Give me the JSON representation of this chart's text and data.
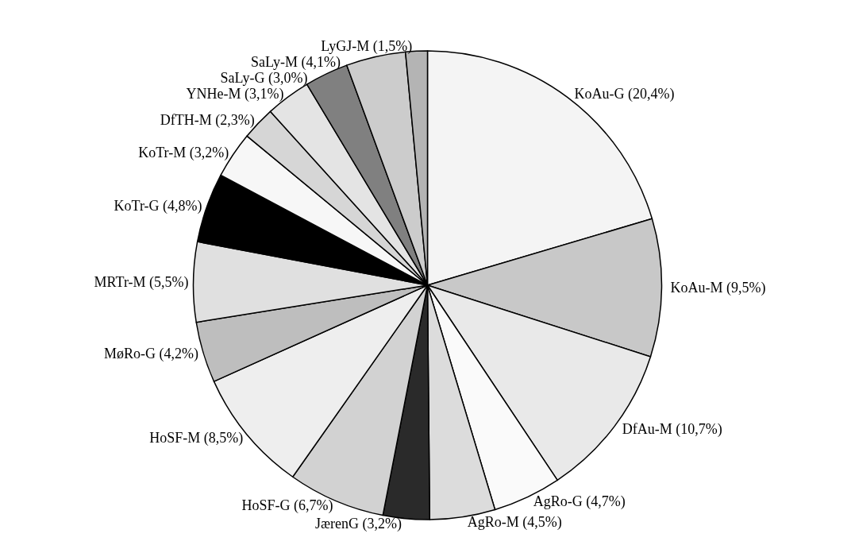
{
  "chart_data": {
    "type": "pie",
    "categories": [
      "KoAu-G",
      "KoAu-M",
      "DfAu-M",
      "AgRo-G",
      "AgRo-M",
      "JærenG",
      "HoSF-G",
      "HoSF-M",
      "MøRo-G",
      "MRTr-M",
      "KoTr-G",
      "KoTr-M",
      "DfTH-M",
      "YNHe-M",
      "SaLy-G",
      "SaLy-M",
      "LyGJ-M"
    ],
    "values": [
      20.4,
      9.5,
      10.7,
      4.7,
      4.5,
      3.2,
      6.7,
      8.5,
      4.2,
      5.5,
      4.8,
      3.2,
      2.3,
      3.1,
      3.0,
      4.1,
      1.5
    ],
    "value_labels": [
      "(20,4%)",
      "(9,5%)",
      "(10,7%)",
      "(4,7%)",
      "(4,5%)",
      "(3,2%)",
      "(6,7%)",
      "(8,5%)",
      "(4,2%)",
      "(5,5%)",
      "(4,8%)",
      "(3,2%)",
      "(2,3%)",
      "(3,1%)",
      "(3,0%)",
      "(4,1%)",
      "(1,5%)"
    ],
    "colors": [
      "#f4f4f4",
      "#c8c8c8",
      "#e9e9e9",
      "#fafafa",
      "#dcdcdc",
      "#2a2a2a",
      "#d2d2d2",
      "#eeeeee",
      "#bebebe",
      "#e0e0e0",
      "#000000",
      "#f7f7f7",
      "#d6d6d6",
      "#e4e4e4",
      "#808080",
      "#cccccc",
      "#b4b4b4"
    ],
    "legend": false
  }
}
